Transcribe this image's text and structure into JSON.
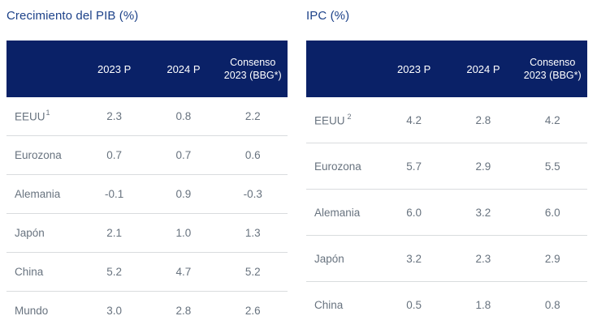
{
  "colors": {
    "header_bg": "#0a2167",
    "title_text": "#1d4289",
    "body_text": "#68737f",
    "divider": "#d9dcde",
    "header_text": "#ffffff"
  },
  "tables": [
    {
      "title": "Crecimiento del PIB (%)",
      "header": {
        "col1": "2023 P",
        "col2": "2024 P",
        "col3_line1": "Consenso",
        "col3_line2": "2023 (BBG*)"
      },
      "rows": [
        {
          "label": "EEUU",
          "sup": "1",
          "values": [
            "2.3",
            "0.8",
            "2.2"
          ]
        },
        {
          "label": "Eurozona",
          "values": [
            "0.7",
            "0.7",
            "0.6"
          ]
        },
        {
          "label": "Alemania",
          "values": [
            "-0.1",
            "0.9",
            "-0.3"
          ]
        },
        {
          "label": "Japón",
          "values": [
            "2.1",
            "1.0",
            "1.3"
          ]
        },
        {
          "label": "China",
          "values": [
            "5.2",
            "4.7",
            "5.2"
          ]
        },
        {
          "label": "Mundo",
          "values": [
            "3.0",
            "2.8",
            "2.6"
          ]
        }
      ]
    },
    {
      "title": "IPC (%)",
      "header": {
        "col1": "2023 P",
        "col2": "2024 P",
        "col3_line1": "Consenso",
        "col3_line2": "2023 (BBG*)"
      },
      "rows": [
        {
          "label": "EEUU",
          "sup": "2",
          "values": [
            "4.2",
            "2.8",
            "4.2"
          ]
        },
        {
          "label": "Eurozona",
          "values": [
            "5.7",
            "2.9",
            "5.5"
          ]
        },
        {
          "label": "Alemania",
          "values": [
            "6.0",
            "3.2",
            "6.0"
          ]
        },
        {
          "label": "Japón",
          "values": [
            "3.2",
            "2.3",
            "2.9"
          ]
        },
        {
          "label": "China",
          "values": [
            "0.5",
            "1.8",
            "0.8"
          ]
        }
      ]
    }
  ]
}
